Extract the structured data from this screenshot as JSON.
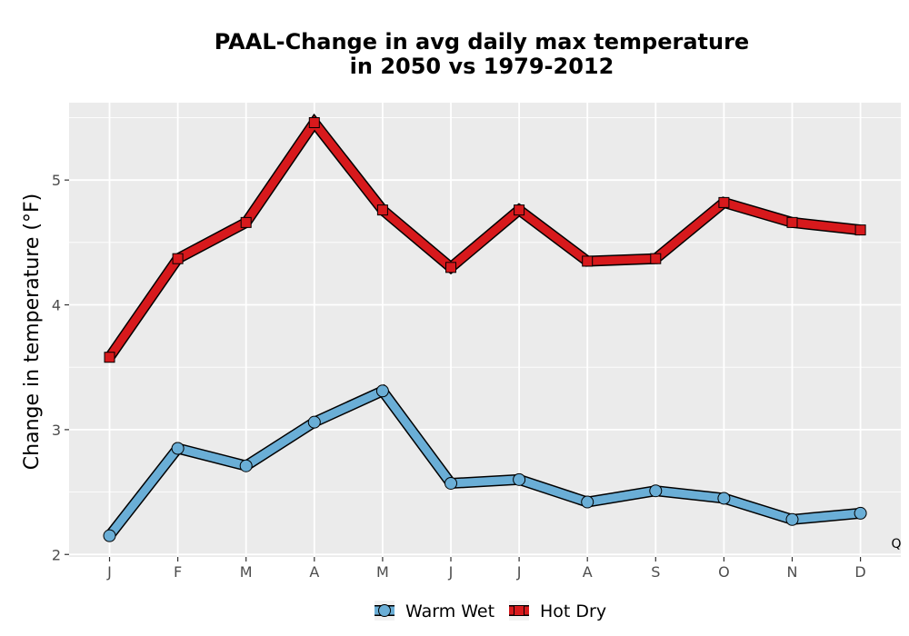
{
  "chart_data": {
    "type": "line",
    "title": [
      "PAAL-Change in avg daily max temperature",
      "in 2050 vs 1979-2012"
    ],
    "xlabel": "",
    "ylabel": "Change in temperature (°F)",
    "categories": [
      "J",
      "F",
      "M",
      "A",
      "M",
      "J",
      "J",
      "A",
      "S",
      "O",
      "N",
      "D"
    ],
    "yticks": [
      2,
      3,
      4,
      5
    ],
    "ylim": [
      1.98,
      5.62
    ],
    "grid": true,
    "legend_position": "bottom",
    "annotation": "Q",
    "series": [
      {
        "name": "Warm Wet",
        "marker": "circle",
        "color": "#6aaed6",
        "values": [
          2.15,
          2.85,
          2.71,
          3.06,
          3.31,
          2.57,
          2.6,
          2.42,
          2.51,
          2.45,
          2.28,
          2.33
        ]
      },
      {
        "name": "Hot Dry",
        "marker": "square",
        "color": "#d7191c",
        "values": [
          3.58,
          4.37,
          4.66,
          5.46,
          4.76,
          4.3,
          4.76,
          4.35,
          4.37,
          4.82,
          4.66,
          4.6
        ]
      }
    ],
    "panel_background": "#ebebeb",
    "grid_color": "#ffffff"
  }
}
